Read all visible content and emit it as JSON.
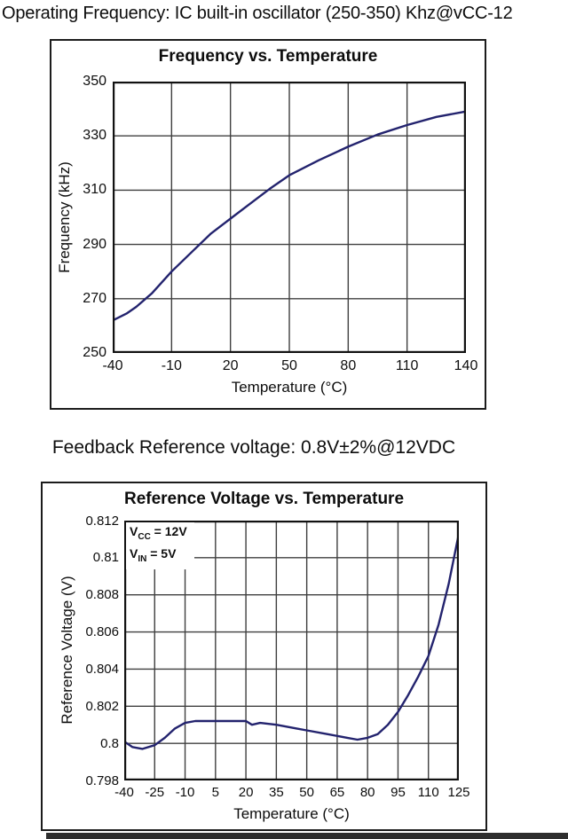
{
  "page": {
    "header_text": "Operating Frequency: IC built-in oscillator (250-350) Khz@vCC-12",
    "mid_text": "Feedback Reference voltage: 0.8V±2%@12VDC"
  },
  "colors": {
    "curve": "#23236e",
    "grid": "#3f3f3f",
    "plot_border": "#111111",
    "panel_border": "#1c1c1c",
    "text": "#0d0d0d",
    "bottom_bar": "#2e2e2e"
  },
  "chart_data": [
    {
      "type": "line",
      "title": "Frequency vs. Temperature",
      "xlabel": "Temperature (°C)",
      "ylabel": "Frequency (kHz)",
      "xlim": [
        -40,
        140
      ],
      "ylim": [
        250,
        350
      ],
      "x_ticks": [
        -40,
        -10,
        20,
        50,
        80,
        110,
        140
      ],
      "y_ticks": [
        250,
        270,
        290,
        310,
        330,
        350
      ],
      "grid": true,
      "legend_position": "none",
      "series": [
        {
          "name": "Frequency (kHz)",
          "points": [
            [
              -40,
              262
            ],
            [
              -33,
              264.5
            ],
            [
              -28,
              267
            ],
            [
              -20,
              272
            ],
            [
              -10,
              280
            ],
            [
              0,
              287
            ],
            [
              10,
              294
            ],
            [
              20,
              299.5
            ],
            [
              30,
              305
            ],
            [
              40,
              310.5
            ],
            [
              50,
              315.5
            ],
            [
              65,
              321
            ],
            [
              80,
              326
            ],
            [
              95,
              330.5
            ],
            [
              110,
              334
            ],
            [
              125,
              337
            ],
            [
              140,
              339
            ]
          ]
        }
      ]
    },
    {
      "type": "line",
      "title": "Reference Voltage vs. Temperature",
      "xlabel": "Temperature (°C)",
      "ylabel": "Reference Voltage (V)",
      "xlim": [
        -40,
        125
      ],
      "ylim": [
        0.798,
        0.812
      ],
      "x_ticks": [
        -40,
        -25,
        -10,
        5,
        20,
        35,
        50,
        65,
        80,
        95,
        110,
        125
      ],
      "y_ticks": [
        0.798,
        0.8,
        0.802,
        0.804,
        0.806,
        0.808,
        0.81,
        0.812
      ],
      "y_tick_labels": [
        "0.798",
        "0.8",
        "0.802",
        "0.804",
        "0.806",
        "0.808",
        "0.81",
        "0.812"
      ],
      "grid": true,
      "legend_position": "none",
      "annotations": [
        {
          "base": "V",
          "sub": "CC",
          "rest": " = 12V"
        },
        {
          "base": "V",
          "sub": "IN",
          "rest": " = 5V"
        }
      ],
      "series": [
        {
          "name": "Reference Voltage (V)",
          "points": [
            [
              -40,
              0.8001
            ],
            [
              -36,
              0.7998
            ],
            [
              -31,
              0.7997
            ],
            [
              -25,
              0.7999
            ],
            [
              -20,
              0.8003
            ],
            [
              -15,
              0.8008
            ],
            [
              -10,
              0.8011
            ],
            [
              -5,
              0.8012
            ],
            [
              5,
              0.8012
            ],
            [
              15,
              0.8012
            ],
            [
              20,
              0.8012
            ],
            [
              23,
              0.801
            ],
            [
              27,
              0.8011
            ],
            [
              35,
              0.801
            ],
            [
              45,
              0.8008
            ],
            [
              50,
              0.8007
            ],
            [
              60,
              0.8005
            ],
            [
              70,
              0.8003
            ],
            [
              75,
              0.8002
            ],
            [
              80,
              0.8003
            ],
            [
              85,
              0.8005
            ],
            [
              90,
              0.801
            ],
            [
              95,
              0.8017
            ],
            [
              100,
              0.8026
            ],
            [
              105,
              0.8036
            ],
            [
              110,
              0.8047
            ],
            [
              115,
              0.8064
            ],
            [
              120,
              0.8086
            ],
            [
              125,
              0.8113
            ]
          ]
        }
      ]
    }
  ]
}
